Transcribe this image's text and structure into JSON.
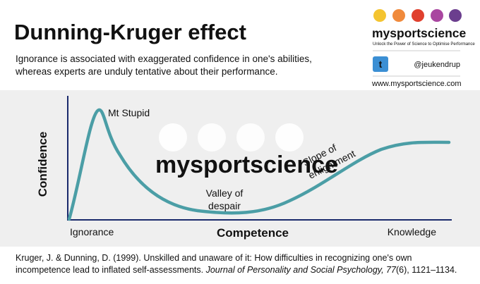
{
  "header": {
    "title": "Dunning-Kruger effect",
    "description": [
      "Ignorance is associated with exaggerated confidence in one's abilities,",
      "whereas experts are unduly tentative about their performance."
    ]
  },
  "brand": {
    "name": "mysportscience",
    "tagline": "Unlock the Power of Science to Optimise Performance",
    "handle": "@jeukendrup",
    "website": "www.mysportscience.com",
    "watermark": "mysportscience"
  },
  "diagram": {
    "y_axis_label": "Confidence",
    "x_axis_label": "Competence",
    "x_start_label": "Ignorance",
    "x_end_label": "Knowledge",
    "annotations": {
      "peak": "Mt Stupid",
      "valley": [
        "Valley of",
        "despair"
      ],
      "slope": [
        "Slope of",
        "enlightment"
      ]
    }
  },
  "citation": {
    "line1": "Kruger, J. & Dunning, D. (1999). Unskilled and unaware of it: How difficulties in recognizing one's own",
    "line2_plain": "incompetence lead to inflated self-assessments. ",
    "line2_italic": "Journal of Personality and Social Psychology, 77",
    "line2_end": "(6), 1121–1134."
  }
}
